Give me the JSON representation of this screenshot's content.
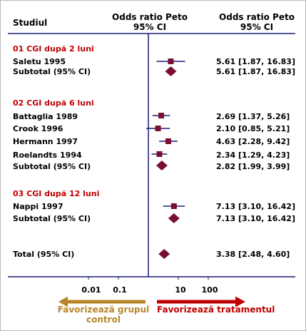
{
  "header": {
    "study_col": "Studiul",
    "or_col_line1": "Odds ratio Peto",
    "or_col_line2": "95% CI",
    "ci_col_line1": "Odds ratio Peto",
    "ci_col_line2": "95% CI"
  },
  "colors": {
    "axis": "#1b1b7a",
    "marker": "#7a1030",
    "group_title": "#c00000",
    "favours_control": "#b8862a",
    "favours_treatment": "#c00000"
  },
  "favours": {
    "left_line1": "Favorizează grupul",
    "left_line2": "control",
    "right": "Favorizează tratamentul"
  },
  "chart_data": {
    "type": "forest",
    "x_scale": "log",
    "x_ticks": [
      {
        "value": 0.01,
        "label": "0.01"
      },
      {
        "value": 0.1,
        "label": "0.1"
      },
      {
        "value": 10,
        "label": "10"
      },
      {
        "value": 100,
        "label": "100"
      }
    ],
    "null_line": 1,
    "groups": [
      {
        "title": "01 CGI după 2 luni",
        "studies": [
          {
            "name": "Saletu 1995",
            "or": 5.61,
            "lo": 1.87,
            "hi": 16.83,
            "ci_text": "5.61 [1.87, 16.83]"
          }
        ],
        "subtotal": {
          "name": "Subtotal (95% CI)",
          "or": 5.61,
          "lo": 1.87,
          "hi": 16.83,
          "ci_text": "5.61 [1.87, 16.83]"
        }
      },
      {
        "title": "02 CGI după 6 luni",
        "studies": [
          {
            "name": "Battaglia 1989",
            "or": 2.69,
            "lo": 1.37,
            "hi": 5.26,
            "ci_text": "2.69 [1.37, 5.26]"
          },
          {
            "name": "Crook 1996",
            "or": 2.1,
            "lo": 0.85,
            "hi": 5.21,
            "ci_text": "2.10 [0.85, 5.21]"
          },
          {
            "name": "Hermann 1997",
            "or": 4.63,
            "lo": 2.28,
            "hi": 9.42,
            "ci_text": "4.63 [2.28, 9.42]"
          },
          {
            "name": "Roelandts 1994",
            "or": 2.34,
            "lo": 1.29,
            "hi": 4.23,
            "ci_text": "2.34 [1.29, 4.23]"
          }
        ],
        "subtotal": {
          "name": "Subtotal (95% CI)",
          "or": 2.82,
          "lo": 1.99,
          "hi": 3.99,
          "ci_text": "2.82 [1.99, 3.99]"
        }
      },
      {
        "title": "03 CGI după 12 luni",
        "studies": [
          {
            "name": "Nappi 1997",
            "or": 7.13,
            "lo": 3.1,
            "hi": 16.42,
            "ci_text": "7.13 [3.10, 16.42]"
          }
        ],
        "subtotal": {
          "name": "Subtotal (95% CI)",
          "or": 7.13,
          "lo": 3.1,
          "hi": 16.42,
          "ci_text": "7.13 [3.10, 16.42]"
        }
      }
    ],
    "total": {
      "name": "Total (95% CI)",
      "or": 3.38,
      "lo": 2.48,
      "hi": 4.6,
      "ci_text": "3.38 [2.48, 4.60]"
    }
  }
}
